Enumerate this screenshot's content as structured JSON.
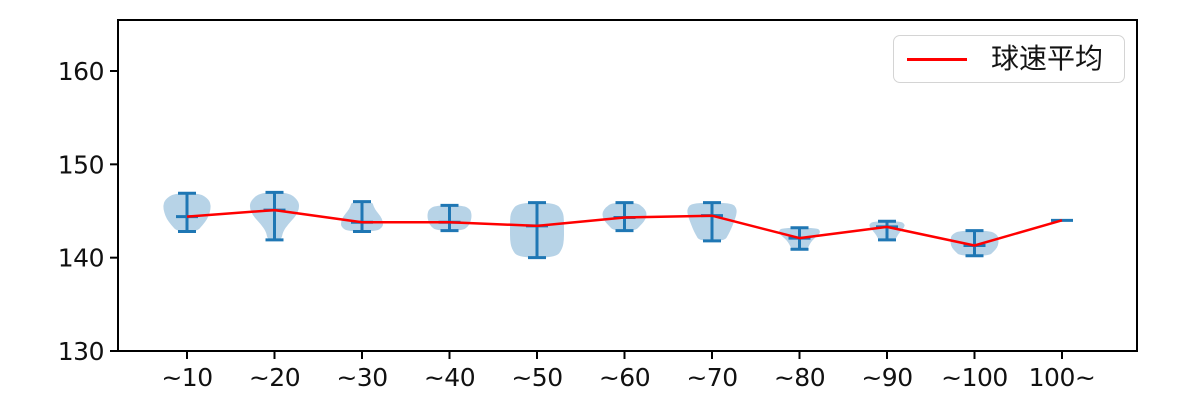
{
  "chart_data": {
    "type": "violin+line",
    "title": "",
    "xlabel": "",
    "ylabel": "",
    "categories": [
      "~10",
      "~20",
      "~30",
      "~40",
      "~50",
      "~60",
      "~70",
      "~80",
      "~90",
      "~100",
      "100~"
    ],
    "yticks": [
      130,
      140,
      150,
      160
    ],
    "ytick_labels": [
      "130",
      "140",
      "150",
      "160"
    ],
    "ylim": [
      130,
      165.5
    ],
    "grid": false,
    "legend": {
      "label": "球速平均",
      "position": "upper right"
    },
    "series": [
      {
        "name": "球速平均",
        "type": "line",
        "color": "#ff0000",
        "values": [
          144.4,
          145.1,
          143.8,
          143.8,
          143.4,
          144.3,
          144.5,
          142.1,
          143.3,
          141.3,
          144.0
        ]
      }
    ],
    "violins": [
      {
        "category": "~10",
        "min": 142.8,
        "max": 146.9,
        "mean": 144.4,
        "halfwidth": 24,
        "profile": [
          0.55,
          0.92,
          1.0,
          0.95,
          0.85,
          0.65,
          0.42
        ]
      },
      {
        "category": "~20",
        "min": 141.9,
        "max": 147.0,
        "mean": 145.1,
        "halfwidth": 25,
        "profile": [
          0.55,
          0.95,
          1.0,
          0.85,
          0.55,
          0.33,
          0.28
        ]
      },
      {
        "category": "~30",
        "min": 142.8,
        "max": 146.0,
        "mean": 143.8,
        "halfwidth": 21,
        "profile": [
          0.5,
          0.55,
          0.7,
          0.9,
          1.0,
          1.0,
          0.7
        ]
      },
      {
        "category": "~40",
        "min": 142.9,
        "max": 145.6,
        "mean": 143.8,
        "halfwidth": 22,
        "profile": [
          0.65,
          0.95,
          1.0,
          1.0,
          0.95,
          0.85,
          0.6
        ]
      },
      {
        "category": "~50",
        "min": 140.0,
        "max": 145.9,
        "mean": 143.4,
        "halfwidth": 27,
        "profile": [
          0.7,
          0.97,
          1.0,
          1.0,
          1.0,
          0.95,
          0.7
        ]
      },
      {
        "category": "~60",
        "min": 142.9,
        "max": 145.9,
        "mean": 144.3,
        "halfwidth": 22,
        "profile": [
          0.55,
          0.85,
          1.0,
          1.0,
          0.9,
          0.7,
          0.5
        ]
      },
      {
        "category": "~70",
        "min": 141.8,
        "max": 145.9,
        "mean": 144.5,
        "halfwidth": 25,
        "profile": [
          0.8,
          1.0,
          0.97,
          0.88,
          0.78,
          0.66,
          0.5
        ]
      },
      {
        "category": "~80",
        "min": 140.9,
        "max": 143.2,
        "mean": 142.1,
        "halfwidth": 21,
        "profile": [
          0.85,
          1.0,
          0.9,
          0.7,
          0.55,
          0.45,
          0.38
        ]
      },
      {
        "category": "~90",
        "min": 141.9,
        "max": 143.9,
        "mean": 143.3,
        "halfwidth": 18,
        "profile": [
          0.75,
          1.0,
          0.95,
          0.8,
          0.65,
          0.55,
          0.45
        ]
      },
      {
        "category": "~100",
        "min": 140.2,
        "max": 142.9,
        "mean": 141.3,
        "halfwidth": 24,
        "profile": [
          0.65,
          0.95,
          1.0,
          1.0,
          0.95,
          0.8,
          0.6
        ]
      },
      {
        "category": "100~",
        "min": 144.0,
        "max": 144.0,
        "mean": 144.0,
        "halfwidth": 0,
        "profile": []
      }
    ],
    "colors": {
      "violin_fill": "rgba(31,119,180,0.32)",
      "whisker": "#1f77b4",
      "line": "#ff0000",
      "axis": "#000000",
      "text": "#111111"
    }
  }
}
